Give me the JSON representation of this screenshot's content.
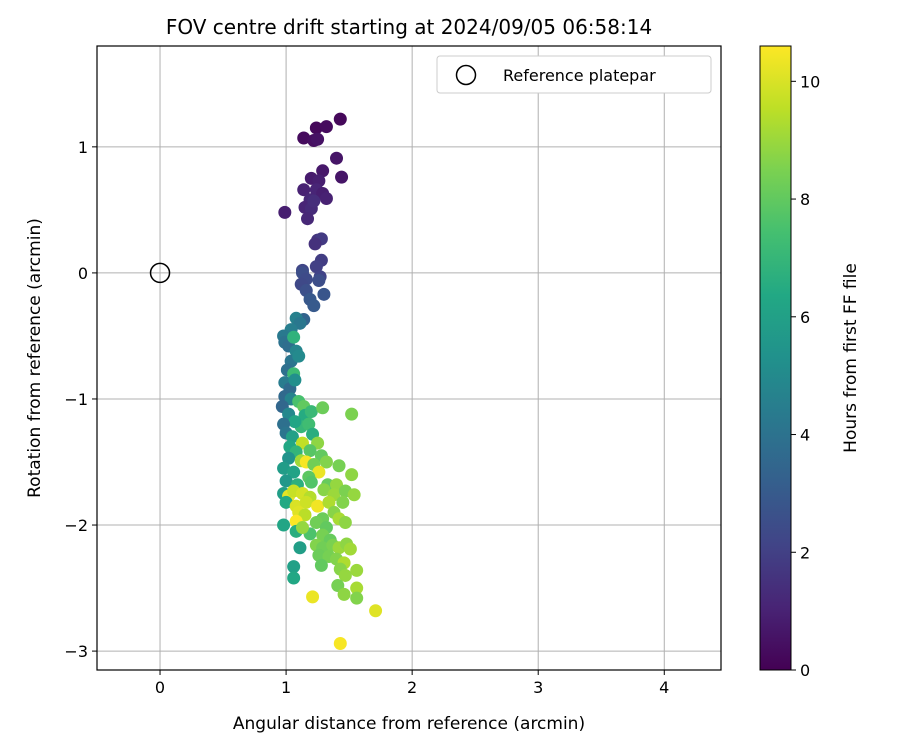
{
  "chart_data": {
    "type": "scatter",
    "title": "FOV centre drift starting at 2024/09/05 06:58:14",
    "xlabel": "Angular distance from reference (arcmin)",
    "ylabel": "Rotation from reference (arcmin)",
    "xlim": [
      -0.5,
      4.45
    ],
    "ylim": [
      -3.15,
      1.8
    ],
    "xticks": [
      0,
      1,
      2,
      3,
      4
    ],
    "yticks": [
      -3,
      -2,
      -1,
      0,
      1
    ],
    "grid": true,
    "legend": {
      "position": "top-right",
      "entries": [
        "Reference platepar"
      ]
    },
    "reference_point": {
      "x": 0,
      "y": 0
    },
    "colorbar": {
      "label": "Hours from first FF file",
      "range": [
        0,
        10.6
      ],
      "ticks": [
        0,
        2,
        4,
        6,
        8,
        10
      ],
      "colormap": "viridis"
    },
    "points": [
      {
        "x": 1.14,
        "y": 1.07,
        "t": 0.3
      },
      {
        "x": 1.24,
        "y": 1.15,
        "t": 0.2
      },
      {
        "x": 1.32,
        "y": 1.16,
        "t": 0.3
      },
      {
        "x": 1.43,
        "y": 1.22,
        "t": 0.2
      },
      {
        "x": 1.22,
        "y": 1.05,
        "t": 0.4
      },
      {
        "x": 1.25,
        "y": 1.06,
        "t": 0.5
      },
      {
        "x": 1.4,
        "y": 0.91,
        "t": 0.6
      },
      {
        "x": 1.29,
        "y": 0.81,
        "t": 0.7
      },
      {
        "x": 1.44,
        "y": 0.76,
        "t": 0.6
      },
      {
        "x": 1.2,
        "y": 0.75,
        "t": 0.8
      },
      {
        "x": 1.26,
        "y": 0.73,
        "t": 0.9
      },
      {
        "x": 1.14,
        "y": 0.66,
        "t": 1.0
      },
      {
        "x": 1.24,
        "y": 0.66,
        "t": 1.1
      },
      {
        "x": 1.29,
        "y": 0.63,
        "t": 0.9
      },
      {
        "x": 1.32,
        "y": 0.59,
        "t": 1.0
      },
      {
        "x": 1.19,
        "y": 0.58,
        "t": 1.2
      },
      {
        "x": 1.15,
        "y": 0.52,
        "t": 1.1
      },
      {
        "x": 1.2,
        "y": 0.51,
        "t": 1.3
      },
      {
        "x": 0.99,
        "y": 0.48,
        "t": 0.9
      },
      {
        "x": 1.17,
        "y": 0.43,
        "t": 1.2
      },
      {
        "x": 1.22,
        "y": 0.57,
        "t": 1.4
      },
      {
        "x": 1.25,
        "y": 0.26,
        "t": 1.6
      },
      {
        "x": 1.28,
        "y": 0.27,
        "t": 1.8
      },
      {
        "x": 1.23,
        "y": 0.23,
        "t": 1.5
      },
      {
        "x": 1.28,
        "y": 0.1,
        "t": 1.9
      },
      {
        "x": 1.24,
        "y": 0.05,
        "t": 2.0
      },
      {
        "x": 1.27,
        "y": -0.03,
        "t": 2.1
      },
      {
        "x": 1.13,
        "y": 0.02,
        "t": 2.2
      },
      {
        "x": 1.13,
        "y": 0.0,
        "t": 2.5
      },
      {
        "x": 1.16,
        "y": -0.05,
        "t": 2.4
      },
      {
        "x": 1.12,
        "y": -0.09,
        "t": 2.3
      },
      {
        "x": 1.16,
        "y": -0.14,
        "t": 2.6
      },
      {
        "x": 1.26,
        "y": -0.06,
        "t": 2.5
      },
      {
        "x": 1.3,
        "y": -0.17,
        "t": 2.8
      },
      {
        "x": 1.19,
        "y": -0.21,
        "t": 2.9
      },
      {
        "x": 1.22,
        "y": -0.26,
        "t": 3.0
      },
      {
        "x": 1.14,
        "y": -0.37,
        "t": 3.4
      },
      {
        "x": 1.08,
        "y": -0.36,
        "t": 4.6
      },
      {
        "x": 1.11,
        "y": -0.4,
        "t": 4.2
      },
      {
        "x": 1.04,
        "y": -0.45,
        "t": 4.5
      },
      {
        "x": 0.98,
        "y": -0.5,
        "t": 4.3
      },
      {
        "x": 0.99,
        "y": -0.55,
        "t": 4.0
      },
      {
        "x": 1.02,
        "y": -0.58,
        "t": 3.8
      },
      {
        "x": 1.06,
        "y": -0.51,
        "t": 6.8
      },
      {
        "x": 1.08,
        "y": -0.62,
        "t": 4.8
      },
      {
        "x": 1.04,
        "y": -0.7,
        "t": 4.1
      },
      {
        "x": 1.1,
        "y": -0.66,
        "t": 5.0
      },
      {
        "x": 1.01,
        "y": -0.77,
        "t": 3.9
      },
      {
        "x": 1.06,
        "y": -0.8,
        "t": 7.2
      },
      {
        "x": 0.99,
        "y": -0.87,
        "t": 4.4
      },
      {
        "x": 1.03,
        "y": -0.92,
        "t": 3.7
      },
      {
        "x": 1.07,
        "y": -0.85,
        "t": 5.2
      },
      {
        "x": 0.99,
        "y": -0.98,
        "t": 3.6
      },
      {
        "x": 1.04,
        "y": -1.0,
        "t": 4.7
      },
      {
        "x": 0.97,
        "y": -1.06,
        "t": 3.5
      },
      {
        "x": 1.02,
        "y": -1.12,
        "t": 4.9
      },
      {
        "x": 1.1,
        "y": -1.02,
        "t": 7.5
      },
      {
        "x": 1.14,
        "y": -1.06,
        "t": 8.0
      },
      {
        "x": 1.15,
        "y": -1.13,
        "t": 6.5
      },
      {
        "x": 1.2,
        "y": -1.1,
        "t": 7.1
      },
      {
        "x": 1.29,
        "y": -1.07,
        "t": 8.2
      },
      {
        "x": 1.52,
        "y": -1.12,
        "t": 8.5
      },
      {
        "x": 1.12,
        "y": -1.22,
        "t": 7.0
      },
      {
        "x": 1.18,
        "y": -1.2,
        "t": 7.3
      },
      {
        "x": 1.07,
        "y": -1.18,
        "t": 6.2
      },
      {
        "x": 0.98,
        "y": -1.2,
        "t": 3.9
      },
      {
        "x": 1.0,
        "y": -1.27,
        "t": 4.1
      },
      {
        "x": 1.05,
        "y": -1.3,
        "t": 6.0
      },
      {
        "x": 1.21,
        "y": -1.28,
        "t": 6.6
      },
      {
        "x": 1.25,
        "y": -1.35,
        "t": 8.8
      },
      {
        "x": 1.13,
        "y": -1.35,
        "t": 9.6
      },
      {
        "x": 1.03,
        "y": -1.38,
        "t": 6.3
      },
      {
        "x": 1.08,
        "y": -1.42,
        "t": 6.9
      },
      {
        "x": 1.19,
        "y": -1.41,
        "t": 7.8
      },
      {
        "x": 1.28,
        "y": -1.45,
        "t": 8.0
      },
      {
        "x": 1.02,
        "y": -1.47,
        "t": 5.4
      },
      {
        "x": 1.12,
        "y": -1.49,
        "t": 9.1
      },
      {
        "x": 1.16,
        "y": -1.5,
        "t": 10.5
      },
      {
        "x": 1.22,
        "y": -1.52,
        "t": 8.3
      },
      {
        "x": 1.32,
        "y": -1.5,
        "t": 8.6
      },
      {
        "x": 1.42,
        "y": -1.53,
        "t": 8.4
      },
      {
        "x": 0.98,
        "y": -1.55,
        "t": 5.8
      },
      {
        "x": 1.06,
        "y": -1.58,
        "t": 6.1
      },
      {
        "x": 1.26,
        "y": -1.58,
        "t": 10.3
      },
      {
        "x": 1.18,
        "y": -1.62,
        "t": 7.9
      },
      {
        "x": 1.52,
        "y": -1.6,
        "t": 8.8
      },
      {
        "x": 1.0,
        "y": -1.65,
        "t": 5.6
      },
      {
        "x": 1.09,
        "y": -1.68,
        "t": 6.7
      },
      {
        "x": 1.2,
        "y": -1.66,
        "t": 7.7
      },
      {
        "x": 1.33,
        "y": -1.68,
        "t": 8.1
      },
      {
        "x": 1.4,
        "y": -1.68,
        "t": 8.9
      },
      {
        "x": 0.98,
        "y": -1.75,
        "t": 5.9
      },
      {
        "x": 1.02,
        "y": -1.77,
        "t": 10.2
      },
      {
        "x": 1.06,
        "y": -1.73,
        "t": 9.7
      },
      {
        "x": 1.13,
        "y": -1.75,
        "t": 9.9
      },
      {
        "x": 1.19,
        "y": -1.78,
        "t": 9.4
      },
      {
        "x": 1.3,
        "y": -1.72,
        "t": 8.7
      },
      {
        "x": 1.38,
        "y": -1.76,
        "t": 9.0
      },
      {
        "x": 1.47,
        "y": -1.73,
        "t": 8.5
      },
      {
        "x": 1.54,
        "y": -1.76,
        "t": 8.9
      },
      {
        "x": 1.0,
        "y": -1.82,
        "t": 6.4
      },
      {
        "x": 1.08,
        "y": -1.85,
        "t": 10.0
      },
      {
        "x": 1.16,
        "y": -1.82,
        "t": 9.8
      },
      {
        "x": 1.25,
        "y": -1.85,
        "t": 10.4
      },
      {
        "x": 1.34,
        "y": -1.82,
        "t": 9.3
      },
      {
        "x": 1.45,
        "y": -1.82,
        "t": 8.6
      },
      {
        "x": 1.1,
        "y": -1.9,
        "t": 10.1
      },
      {
        "x": 1.15,
        "y": -1.92,
        "t": 9.5
      },
      {
        "x": 1.29,
        "y": -1.95,
        "t": 8.2
      },
      {
        "x": 1.38,
        "y": -1.9,
        "t": 8.7
      },
      {
        "x": 1.42,
        "y": -1.95,
        "t": 9.2
      },
      {
        "x": 0.98,
        "y": -2.0,
        "t": 6.2
      },
      {
        "x": 1.08,
        "y": -1.97,
        "t": 10.6
      },
      {
        "x": 1.24,
        "y": -1.98,
        "t": 8.3
      },
      {
        "x": 1.32,
        "y": -2.02,
        "t": 8.0
      },
      {
        "x": 1.47,
        "y": -1.98,
        "t": 8.8
      },
      {
        "x": 1.08,
        "y": -2.05,
        "t": 6.6
      },
      {
        "x": 1.19,
        "y": -2.07,
        "t": 7.6
      },
      {
        "x": 1.29,
        "y": -2.08,
        "t": 8.4
      },
      {
        "x": 1.13,
        "y": -2.02,
        "t": 8.9
      },
      {
        "x": 1.35,
        "y": -2.12,
        "t": 8.1
      },
      {
        "x": 1.11,
        "y": -2.18,
        "t": 5.9
      },
      {
        "x": 1.24,
        "y": -2.16,
        "t": 8.6
      },
      {
        "x": 1.29,
        "y": -2.18,
        "t": 8.3
      },
      {
        "x": 1.37,
        "y": -2.16,
        "t": 8.5
      },
      {
        "x": 1.42,
        "y": -2.18,
        "t": 9.0
      },
      {
        "x": 1.48,
        "y": -2.15,
        "t": 8.8
      },
      {
        "x": 1.51,
        "y": -2.19,
        "t": 9.1
      },
      {
        "x": 1.26,
        "y": -2.24,
        "t": 8.2
      },
      {
        "x": 1.34,
        "y": -2.25,
        "t": 8.4
      },
      {
        "x": 1.4,
        "y": -2.27,
        "t": 8.6
      },
      {
        "x": 1.46,
        "y": -2.3,
        "t": 9.3
      },
      {
        "x": 1.06,
        "y": -2.33,
        "t": 6.0
      },
      {
        "x": 1.28,
        "y": -2.32,
        "t": 8.0
      },
      {
        "x": 1.43,
        "y": -2.35,
        "t": 8.7
      },
      {
        "x": 1.56,
        "y": -2.36,
        "t": 9.0
      },
      {
        "x": 1.47,
        "y": -2.4,
        "t": 8.9
      },
      {
        "x": 1.06,
        "y": -2.42,
        "t": 6.3
      },
      {
        "x": 1.41,
        "y": -2.48,
        "t": 8.4
      },
      {
        "x": 1.56,
        "y": -2.5,
        "t": 9.2
      },
      {
        "x": 1.46,
        "y": -2.55,
        "t": 8.8
      },
      {
        "x": 1.21,
        "y": -2.57,
        "t": 10.3
      },
      {
        "x": 1.56,
        "y": -2.58,
        "t": 8.6
      },
      {
        "x": 1.71,
        "y": -2.68,
        "t": 10.1
      },
      {
        "x": 1.43,
        "y": -2.94,
        "t": 10.5
      }
    ]
  }
}
